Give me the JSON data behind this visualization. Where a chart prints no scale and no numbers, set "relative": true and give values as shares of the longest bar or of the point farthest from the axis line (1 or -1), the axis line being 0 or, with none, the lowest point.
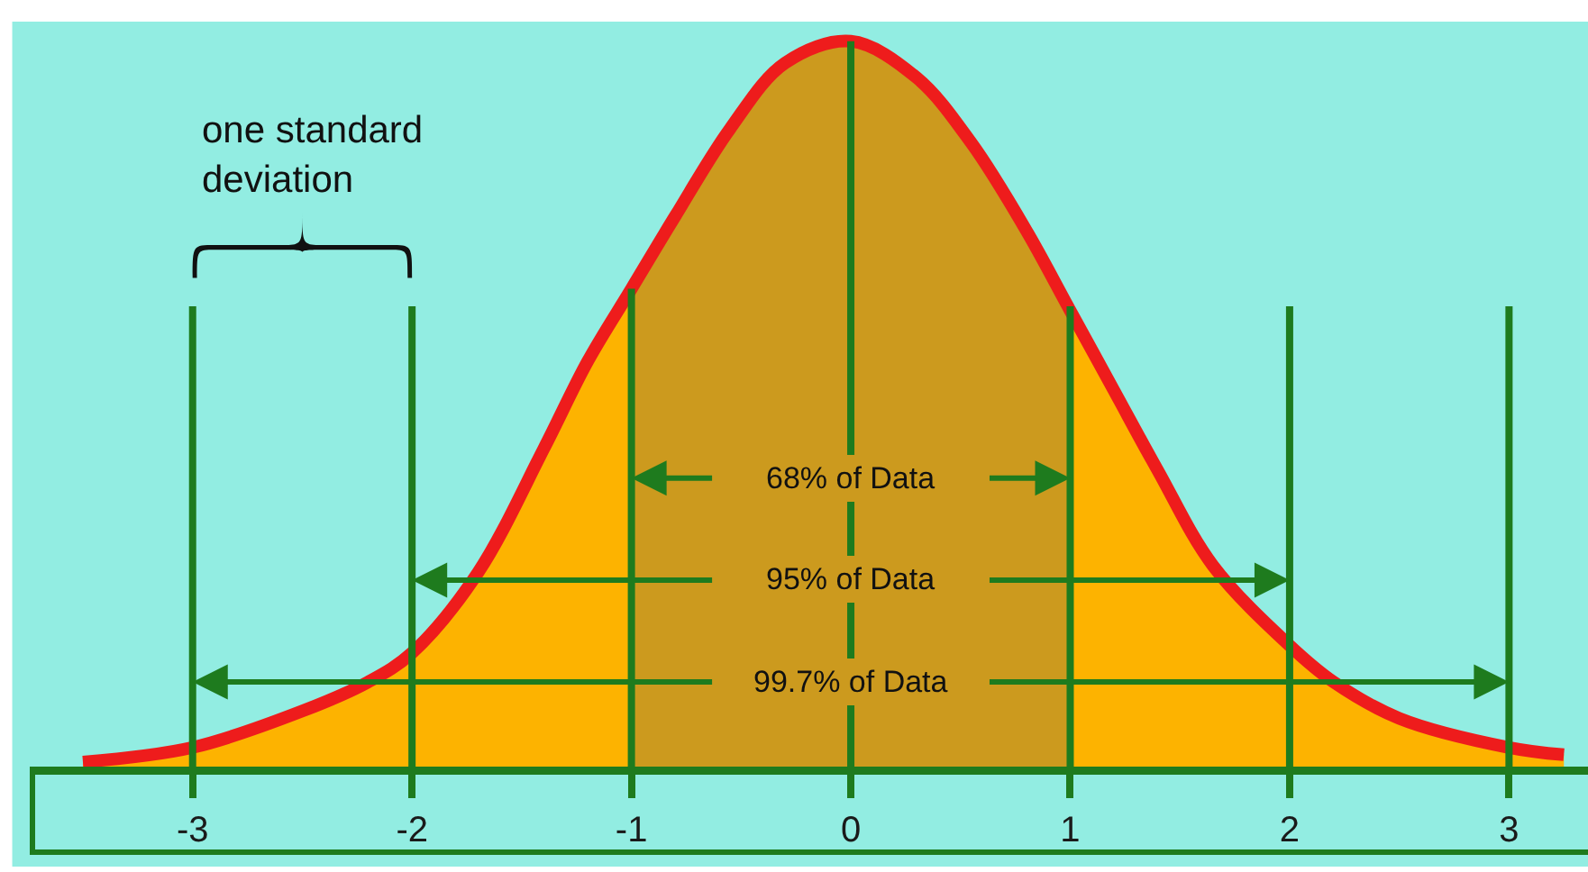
{
  "chart_data": {
    "type": "area",
    "relative": true,
    "xlim": [
      -3.73,
      3.36
    ],
    "xticks": [
      -3,
      -2,
      -1,
      0,
      1,
      2,
      3
    ],
    "tick_labels": "x",
    "series": [
      {
        "color": "#fdb300",
        "x": [
          -3.5,
          -3,
          -2.5,
          -2.2,
          -2,
          -1.7,
          -1.4,
          -1.2,
          -1
        ],
        "values": [
          0.01,
          0.03,
          0.08,
          0.12,
          0.16,
          0.27,
          0.44,
          0.56,
          0.66
        ]
      },
      {
        "color": "#cc9a1e",
        "x": [
          -1,
          -0.8,
          -0.55,
          -0.3,
          0,
          0.3,
          0.55,
          0.8,
          1
        ],
        "values": [
          0.66,
          0.76,
          0.88,
          0.97,
          1,
          0.95,
          0.86,
          0.74,
          0.63
        ]
      },
      {
        "color": "#fdb300",
        "x": [
          1,
          1.2,
          1.4,
          1.65,
          2,
          2.2,
          2.5,
          3,
          3.25
        ],
        "values": [
          0.63,
          0.52,
          0.41,
          0.28,
          0.17,
          0.12,
          0.07,
          0.03,
          0.02
        ]
      },
      {
        "type": "line",
        "color": "#ee1c1c",
        "x": [
          -3.5,
          -3,
          -2.5,
          -2.2,
          -2,
          -1.7,
          -1.4,
          -1.2,
          -1,
          -0.8,
          -0.55,
          -0.3,
          0,
          0.3,
          0.55,
          0.8,
          1,
          1.2,
          1.4,
          1.65,
          2,
          2.2,
          2.5,
          3,
          3.25
        ],
        "values": [
          0.01,
          0.03,
          0.08,
          0.12,
          0.16,
          0.27,
          0.44,
          0.56,
          0.66,
          0.76,
          0.88,
          0.97,
          1,
          0.95,
          0.86,
          0.74,
          0.63,
          0.52,
          0.41,
          0.28,
          0.17,
          0.12,
          0.07,
          0.03,
          0.02
        ]
      }
    ],
    "ref_lines": [
      {
        "axis": "x",
        "value": -3,
        "color": "#1e7b1e"
      },
      {
        "axis": "x",
        "value": -2,
        "color": "#1e7b1e"
      },
      {
        "axis": "x",
        "value": -1,
        "color": "#1e7b1e"
      },
      {
        "axis": "x",
        "value": 0,
        "color": "#1e7b1e"
      },
      {
        "axis": "x",
        "value": 1,
        "color": "#1e7b1e"
      },
      {
        "axis": "x",
        "value": 2,
        "color": "#1e7b1e"
      },
      {
        "axis": "x",
        "value": 3,
        "color": "#1e7b1e"
      }
    ],
    "annotations": [
      "one standard deviation",
      {
        "text": "68% of Data",
        "y": 0.4
      },
      {
        "text": "95% of Data",
        "y": 0.26
      },
      {
        "text": "99.7% of Data",
        "y": 0.12
      }
    ]
  }
}
